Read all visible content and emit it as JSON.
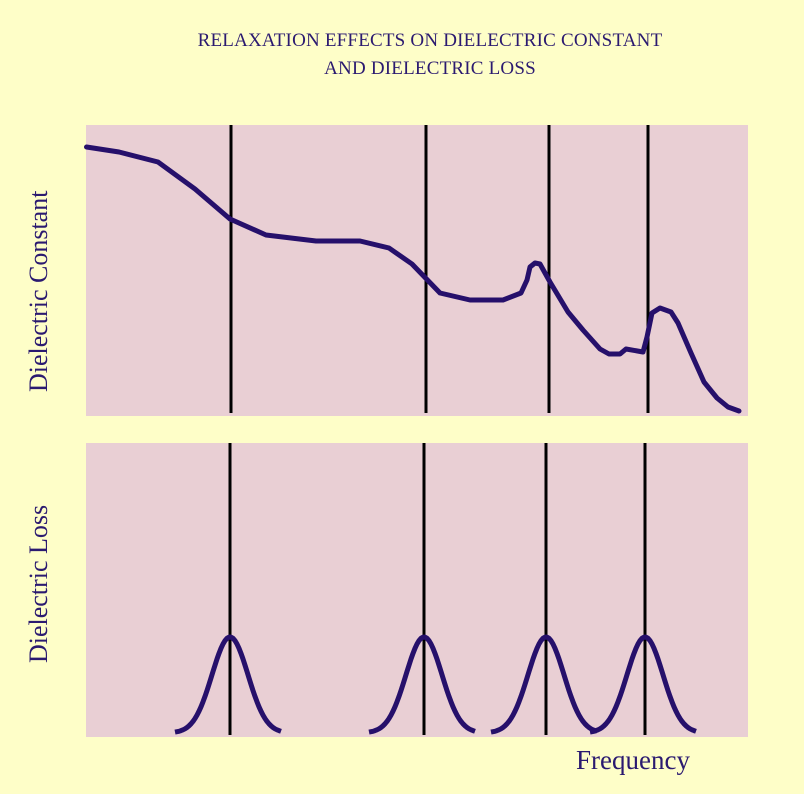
{
  "title": {
    "line1": "RELAXATION EFFECTS ON DIELECTRIC CONSTANT",
    "line2": "AND DIELECTRIC LOSS"
  },
  "top_panel": {
    "ylabel": "Dielectric Constant"
  },
  "bottom_panel": {
    "ylabel": "Dielectric Loss"
  },
  "xlabel": "Frequency",
  "colors": {
    "background": "#fefec8",
    "panel": "#e9cfd4",
    "curve": "#26106b",
    "marker_lines": "#000000",
    "text": "#2b1a70"
  }
}
